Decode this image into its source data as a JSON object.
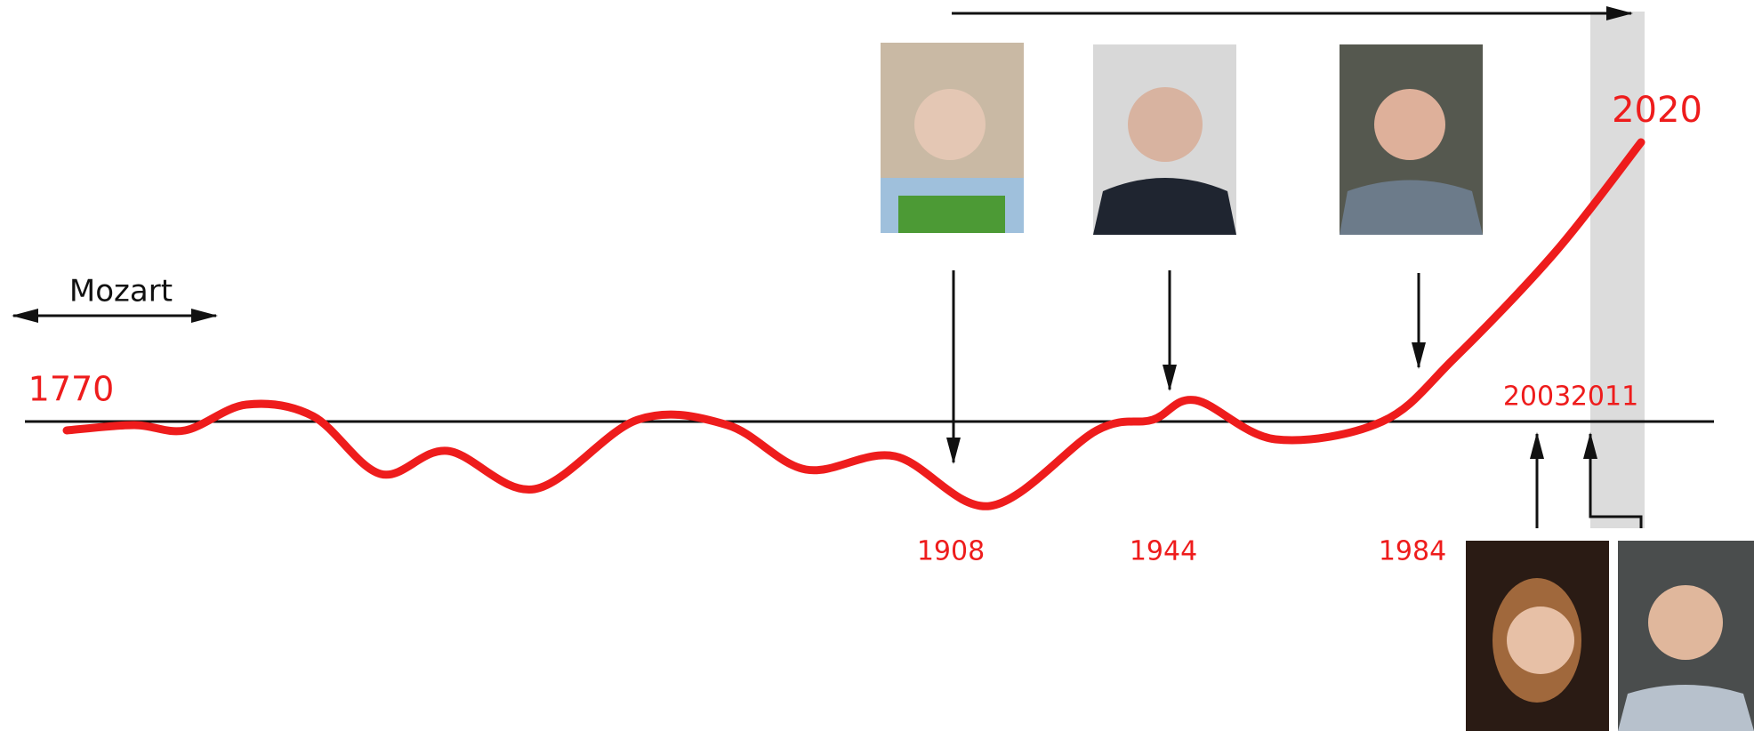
{
  "mozart": "Mozart",
  "years": {
    "start": "1770",
    "y1908": "1908",
    "y1944": "1944",
    "y1984": "1984",
    "y2003": "2003",
    "y2011": "2011",
    "end": "2020"
  }
}
